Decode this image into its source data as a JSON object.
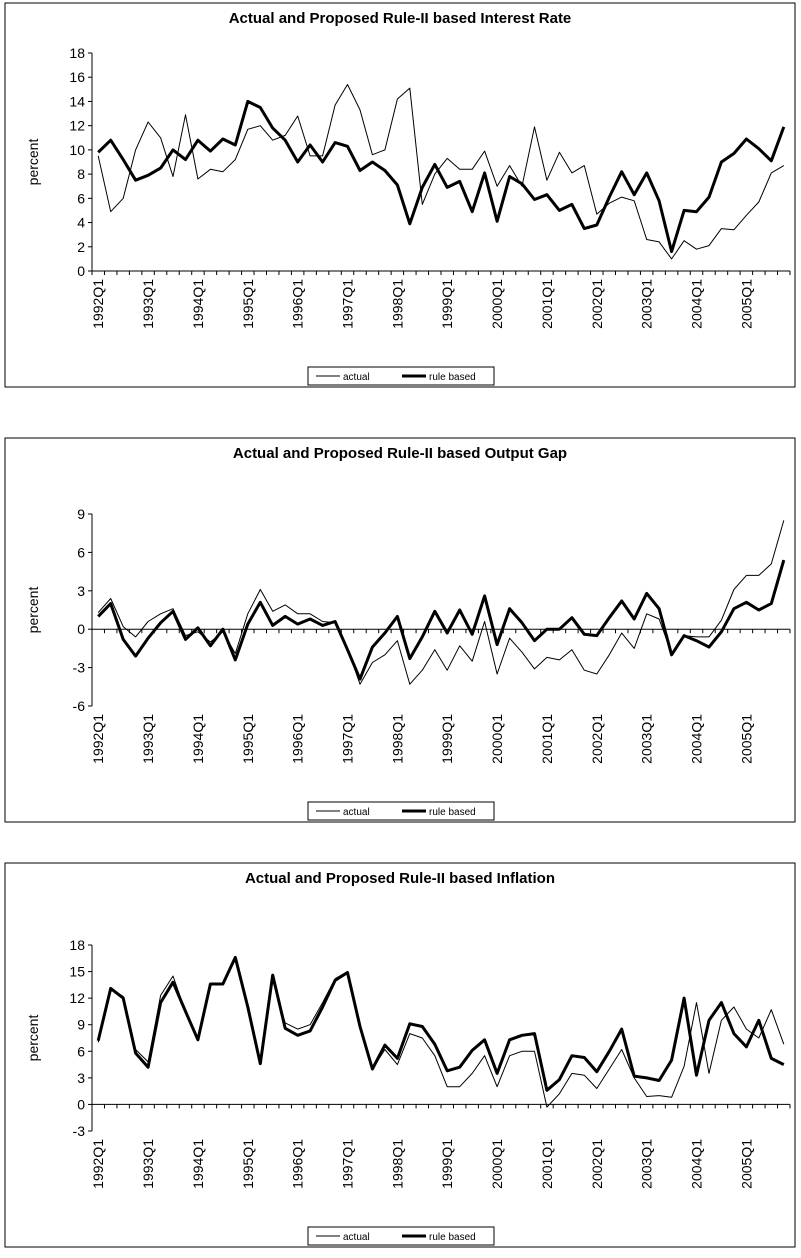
{
  "chart_data": [
    {
      "type": "line",
      "title": "Actual and Proposed Rule-II based Interest Rate",
      "ylabel": "percent",
      "categories": [
        "1992Q1",
        null,
        null,
        null,
        "1993Q1",
        null,
        null,
        null,
        "1994Q1",
        null,
        null,
        null,
        "1995Q1",
        null,
        null,
        null,
        "1996Q1",
        null,
        null,
        null,
        "1997Q1",
        null,
        null,
        null,
        "1998Q1",
        null,
        null,
        null,
        "1999Q1",
        null,
        null,
        null,
        "2000Q1",
        null,
        null,
        null,
        "2001Q1",
        null,
        null,
        null,
        "2002Q1",
        null,
        null,
        null,
        "2003Q1",
        null,
        null,
        null,
        "2004Q1",
        null,
        null,
        null,
        "2005Q1",
        null,
        null,
        null
      ],
      "ylim": [
        0,
        18
      ],
      "yticks": [
        0,
        2,
        4,
        6,
        8,
        10,
        12,
        14,
        16,
        18
      ],
      "series": [
        {
          "name": "actual",
          "color": "#000000",
          "values": [
            9.5,
            4.9,
            6.0,
            10.0,
            12.3,
            11.0,
            7.8,
            12.9,
            7.6,
            8.4,
            8.2,
            9.2,
            11.7,
            12.0,
            10.8,
            11.2,
            12.8,
            9.5,
            9.5,
            13.7,
            15.4,
            13.3,
            9.6,
            10.0,
            14.2,
            15.1,
            5.5,
            8.0,
            9.3,
            8.4,
            8.4,
            9.9,
            7.0,
            8.7,
            7.0,
            11.9,
            7.5,
            9.8,
            8.1,
            8.7,
            4.7,
            5.6,
            6.1,
            5.8,
            2.6,
            2.4,
            1.0,
            2.5,
            1.8,
            2.1,
            3.5,
            3.4,
            4.6,
            5.7,
            8.1,
            8.7
          ]
        },
        {
          "name": "rule based",
          "color": "#000000",
          "values": [
            9.8,
            10.8,
            9.2,
            7.5,
            7.9,
            8.5,
            10.0,
            9.2,
            10.8,
            9.9,
            10.9,
            10.4,
            14.0,
            13.5,
            11.8,
            10.8,
            9.0,
            10.4,
            9.0,
            10.6,
            10.3,
            8.3,
            9.0,
            8.3,
            7.1,
            3.9,
            6.9,
            8.8,
            6.9,
            7.4,
            4.9,
            8.1,
            4.1,
            7.8,
            7.2,
            5.9,
            6.3,
            5.0,
            5.5,
            3.5,
            3.8,
            6.1,
            8.2,
            6.3,
            8.1,
            5.8,
            1.6,
            5.0,
            4.9,
            6.1,
            9.0,
            9.7,
            10.9,
            10.1,
            9.1,
            11.9
          ]
        }
      ]
    },
    {
      "type": "line",
      "title": "Actual and Proposed Rule-II based Output Gap",
      "ylabel": "percent",
      "categories": [
        "1992Q1",
        null,
        null,
        null,
        "1993Q1",
        null,
        null,
        null,
        "1994Q1",
        null,
        null,
        null,
        "1995Q1",
        null,
        null,
        null,
        "1996Q1",
        null,
        null,
        null,
        "1997Q1",
        null,
        null,
        null,
        "1998Q1",
        null,
        null,
        null,
        "1999Q1",
        null,
        null,
        null,
        "2000Q1",
        null,
        null,
        null,
        "2001Q1",
        null,
        null,
        null,
        "2002Q1",
        null,
        null,
        null,
        "2003Q1",
        null,
        null,
        null,
        "2004Q1",
        null,
        null,
        null,
        "2005Q1",
        null,
        null,
        null
      ],
      "ylim": [
        -6,
        9
      ],
      "yticks": [
        -6,
        -3,
        0,
        3,
        6,
        9
      ],
      "series": [
        {
          "name": "actual",
          "color": "#000000",
          "values": [
            1.3,
            2.4,
            0.2,
            -0.6,
            0.6,
            1.2,
            1.6,
            -0.5,
            -0.2,
            -1.0,
            -0.2,
            -1.9,
            1.2,
            3.1,
            1.4,
            1.9,
            1.2,
            1.2,
            0.6,
            0.5,
            -1.5,
            -4.3,
            -2.6,
            -2.0,
            -0.9,
            -4.3,
            -3.2,
            -1.6,
            -3.2,
            -1.3,
            -2.5,
            0.6,
            -3.5,
            -0.7,
            -1.8,
            -3.1,
            -2.2,
            -2.4,
            -1.6,
            -3.2,
            -3.5,
            -2.0,
            -0.3,
            -1.5,
            1.2,
            0.8,
            -1.9,
            -0.5,
            -0.6,
            -0.6,
            0.7,
            3.1,
            4.2,
            4.2,
            5.1,
            8.5
          ]
        },
        {
          "name": "rule based",
          "color": "#000000",
          "values": [
            1.0,
            2.0,
            -0.8,
            -2.1,
            -0.7,
            0.5,
            1.4,
            -0.8,
            0.1,
            -1.3,
            0.0,
            -2.4,
            0.4,
            2.1,
            0.3,
            1.0,
            0.4,
            0.8,
            0.3,
            0.6,
            -1.6,
            -3.9,
            -1.4,
            -0.3,
            1.0,
            -2.3,
            -0.6,
            1.4,
            -0.3,
            1.5,
            -0.4,
            2.6,
            -1.2,
            1.6,
            0.5,
            -0.9,
            0.0,
            0.0,
            0.9,
            -0.4,
            -0.5,
            0.9,
            2.2,
            0.8,
            2.8,
            1.6,
            -2.0,
            -0.5,
            -0.9,
            -1.4,
            -0.2,
            1.6,
            2.1,
            1.5,
            2.0,
            5.4
          ]
        }
      ]
    },
    {
      "type": "line",
      "title": "Actual and Proposed Rule-II based Inflation",
      "ylabel": "percent",
      "categories": [
        "1992Q1",
        null,
        null,
        null,
        "1993Q1",
        null,
        null,
        null,
        "1994Q1",
        null,
        null,
        null,
        "1995Q1",
        null,
        null,
        null,
        "1996Q1",
        null,
        null,
        null,
        "1997Q1",
        null,
        null,
        null,
        "1998Q1",
        null,
        null,
        null,
        "1999Q1",
        null,
        null,
        null,
        "2000Q1",
        null,
        null,
        null,
        "2001Q1",
        null,
        null,
        null,
        "2002Q1",
        null,
        null,
        null,
        "2003Q1",
        null,
        null,
        null,
        "2004Q1",
        null,
        null,
        null,
        "2005Q1",
        null,
        null,
        null
      ],
      "ylim": [
        -3,
        18
      ],
      "yticks": [
        -3,
        0,
        3,
        6,
        9,
        12,
        15,
        18
      ],
      "series": [
        {
          "name": "actual",
          "color": "#000000",
          "values": [
            7.0,
            13.0,
            12.2,
            6.2,
            4.8,
            12.3,
            14.5,
            10.5,
            7.5,
            13.5,
            13.5,
            16.5,
            11.0,
            4.6,
            14.0,
            9.2,
            8.5,
            9.0,
            11.5,
            14.2,
            15.0,
            9.0,
            4.0,
            6.2,
            4.5,
            8.0,
            7.5,
            5.5,
            2.0,
            2.0,
            3.5,
            5.5,
            2.0,
            5.5,
            6.0,
            6.0,
            -0.3,
            1.2,
            3.5,
            3.3,
            1.8,
            4.0,
            6.2,
            3.0,
            0.9,
            1.0,
            0.8,
            4.3,
            11.5,
            3.5,
            9.5,
            11.0,
            8.5,
            7.5,
            10.7,
            6.8
          ]
        },
        {
          "name": "rule based",
          "color": "#000000",
          "values": [
            7.2,
            13.1,
            12.0,
            5.8,
            4.2,
            11.5,
            13.8,
            10.5,
            7.3,
            13.6,
            13.6,
            16.6,
            11.0,
            4.6,
            14.6,
            8.6,
            7.8,
            8.3,
            11.0,
            14.0,
            14.9,
            8.8,
            4.0,
            6.7,
            5.2,
            9.1,
            8.8,
            6.8,
            3.8,
            4.2,
            6.1,
            7.3,
            3.5,
            7.3,
            7.8,
            8.0,
            1.6,
            2.8,
            5.5,
            5.3,
            3.7,
            6.0,
            8.5,
            3.2,
            3.0,
            2.7,
            5.0,
            12.0,
            3.3,
            9.5,
            11.5,
            8.0,
            6.5,
            9.5,
            5.2,
            4.5
          ]
        }
      ]
    }
  ]
}
